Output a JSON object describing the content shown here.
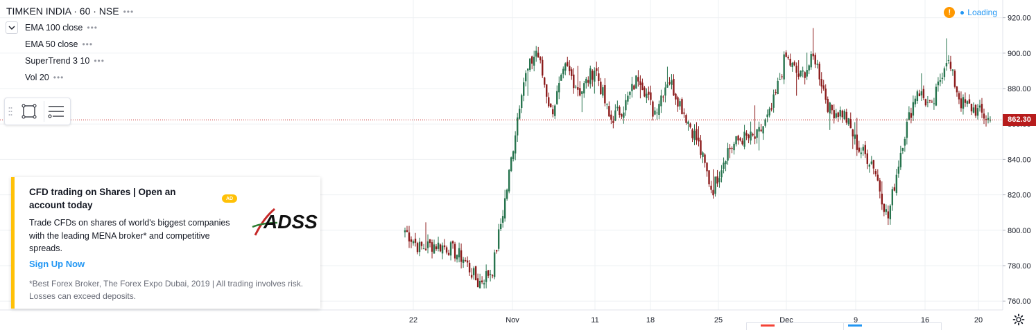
{
  "header": {
    "symbol_line": "TIMKEN INDIA · 60 · NSE",
    "studies": [
      "EMA 100 close",
      "EMA 50 close",
      "SuperTrend 3 10",
      "Vol 20"
    ],
    "status": "Loading"
  },
  "chart_data": {
    "type": "candlestick",
    "current_price": "862.30",
    "y_axis": {
      "min": 755,
      "max": 930,
      "ticks": [
        "920.00",
        "900.00",
        "880.00",
        "860.00",
        "840.00",
        "820.00",
        "800.00",
        "780.00",
        "760.00"
      ]
    },
    "x_axis": {
      "ticks": [
        "22",
        "Nov",
        "11",
        "18",
        "25",
        "Dec",
        "9",
        "16",
        "20"
      ]
    },
    "waypoints": [
      {
        "date": "Oct 21",
        "price": 800
      },
      {
        "date": "Oct 22",
        "price": 790
      },
      {
        "date": "Oct 23",
        "price": 792
      },
      {
        "date": "Oct 24",
        "price": 790
      },
      {
        "date": "Oct 25",
        "price": 784
      },
      {
        "date": "Oct 28",
        "price": 770
      },
      {
        "date": "Oct 29",
        "price": 778
      },
      {
        "date": "Oct 30",
        "price": 825
      },
      {
        "date": "Oct 31",
        "price": 882
      },
      {
        "date": "Nov 1",
        "price": 902
      },
      {
        "date": "Nov 4",
        "price": 866
      },
      {
        "date": "Nov 6",
        "price": 892
      },
      {
        "date": "Nov 7",
        "price": 878
      },
      {
        "date": "Nov 8",
        "price": 892
      },
      {
        "date": "Nov 11",
        "price": 862
      },
      {
        "date": "Nov 13",
        "price": 870
      },
      {
        "date": "Nov 14",
        "price": 888
      },
      {
        "date": "Nov 15",
        "price": 866
      },
      {
        "date": "Nov 18",
        "price": 886
      },
      {
        "date": "Nov 20",
        "price": 868
      },
      {
        "date": "Nov 21",
        "price": 850
      },
      {
        "date": "Nov 22",
        "price": 822
      },
      {
        "date": "Nov 25",
        "price": 845
      },
      {
        "date": "Nov 26",
        "price": 852
      },
      {
        "date": "Nov 28",
        "price": 852
      },
      {
        "date": "Nov 29",
        "price": 866
      },
      {
        "date": "Dec 2",
        "price": 898
      },
      {
        "date": "Dec 3",
        "price": 886
      },
      {
        "date": "Dec 4",
        "price": 898
      },
      {
        "date": "Dec 5",
        "price": 868
      },
      {
        "date": "Dec 6",
        "price": 866
      },
      {
        "date": "Dec 9",
        "price": 846
      },
      {
        "date": "Dec 10",
        "price": 838
      },
      {
        "date": "Dec 11",
        "price": 806
      },
      {
        "date": "Dec 12",
        "price": 850
      },
      {
        "date": "Dec 13",
        "price": 880
      },
      {
        "date": "Dec 16",
        "price": 868
      },
      {
        "date": "Dec 17",
        "price": 898
      },
      {
        "date": "Dec 18",
        "price": 872
      },
      {
        "date": "Dec 19",
        "price": 868
      },
      {
        "date": "Dec 20",
        "price": 862
      }
    ]
  },
  "ad": {
    "badge": "AD",
    "title": "CFD trading on Shares | Open an account today",
    "body": "Trade CFDs on shares of world's biggest companies with the leading MENA broker* and competitive spreads.",
    "cta": "Sign Up Now",
    "disclaimer": "*Best Forex Broker, The Forex Expo Dubai, 2019 | All trading involves risk. Losses can exceed deposits.",
    "logo_text": "ADSS"
  },
  "colors": {
    "up": "#26734d",
    "down": "#8b1a1a",
    "grid": "#eef0f3",
    "accent": "#2196f3",
    "price_line": "#c62828"
  }
}
